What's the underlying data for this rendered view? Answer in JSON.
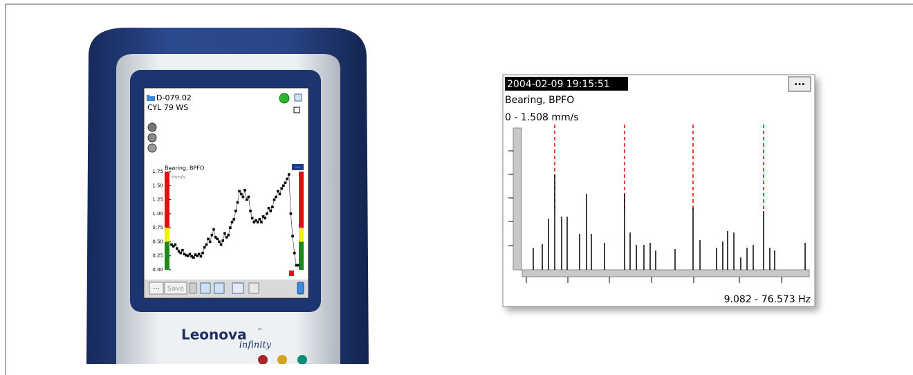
{
  "device": {
    "brand": "Leonova",
    "trademark": "™",
    "model": "infinity",
    "screen": {
      "machine": "D-079.02",
      "point": "CYL 79 WS",
      "more": "...",
      "save": "Save"
    }
  },
  "chart_data": [
    {
      "type": "line",
      "title": "Bearing, BPFO",
      "unit": "mm/s",
      "menu": "...",
      "color": "#000000",
      "values": [
        0.45,
        0.42,
        0.45,
        0.38,
        0.33,
        0.3,
        0.35,
        0.28,
        0.26,
        0.25,
        0.28,
        0.24,
        0.22,
        0.27,
        0.25,
        0.28,
        0.24,
        0.3,
        0.4,
        0.45,
        0.55,
        0.5,
        0.62,
        0.72,
        0.58,
        0.55,
        0.5,
        0.45,
        0.52,
        0.65,
        0.58,
        0.62,
        0.75,
        0.85,
        0.9,
        1.05,
        1.2,
        1.4,
        1.35,
        1.3,
        1.42,
        1.25,
        1.3,
        1.05,
        0.92,
        0.85,
        0.88,
        0.85,
        0.9,
        0.85,
        0.95,
        0.92,
        1.0,
        1.1,
        1.05,
        1.12,
        1.25,
        1.3,
        1.4,
        1.35,
        1.45,
        1.5,
        1.55,
        1.62,
        1.7,
        1.0,
        0.6,
        0.3,
        0.08,
        0.08
      ],
      "ylim": [
        0,
        1.75
      ],
      "yticks": [
        {
          "value": 0,
          "label": "0.00"
        },
        {
          "value": 0.25,
          "label": "0.25"
        },
        {
          "value": 0.5,
          "label": "0.50"
        },
        {
          "value": 0.75,
          "label": "0.75"
        },
        {
          "value": 1,
          "label": "1.00"
        },
        {
          "value": 1.25,
          "label": "1.25"
        },
        {
          "value": 1.5,
          "label": "1.50"
        },
        {
          "value": 1.75,
          "label": "1.75"
        }
      ],
      "alarm_levels": {
        "alert": 0.5,
        "danger": 0.75
      }
    },
    {
      "type": "bar",
      "timestamp": "2004-02-09 19:15:51",
      "title": "Bearing, BPFO",
      "menu": "...",
      "range_label": "0  -  1.508 mm/s",
      "x_range_label": "9.082  -  76.573 Hz",
      "xlim": [
        9.082,
        76.573
      ],
      "ylim": [
        0,
        1.508
      ],
      "color": "#000000",
      "marker_color": "#e00000",
      "x": [
        11.68,
        13.8,
        15.26,
        16.73,
        18.35,
        19.65,
        22.58,
        24.21,
        25.34,
        28.43,
        33.15,
        34.45,
        35.92,
        37.7,
        39.17,
        40.47,
        45.02,
        49.25,
        50.88,
        54.78,
        56.24,
        57.38,
        58.85,
        60.47,
        61.94,
        63.4,
        65.84,
        67.3,
        68.44,
        75.6
      ],
      "values": [
        0.235,
        0.272,
        0.544,
        1.015,
        0.566,
        0.566,
        0.383,
        0.809,
        0.383,
        0.287,
        0.809,
        0.397,
        0.265,
        0.265,
        0.287,
        0.206,
        0.221,
        0.662,
        0.316,
        0.235,
        0.302,
        0.412,
        0.397,
        0.132,
        0.235,
        0.265,
        0.625,
        0.235,
        0.206,
        0.287
      ],
      "markers": [
        16.73,
        33.15,
        49.25,
        65.84
      ]
    }
  ]
}
